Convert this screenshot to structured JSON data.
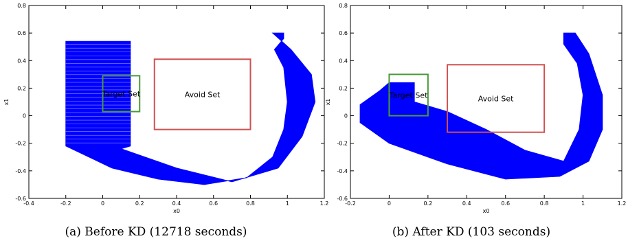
{
  "chart_data": [
    {
      "type": "area",
      "caption": "(a) Before KD (12718 seconds)",
      "xlabel": "x0",
      "ylabel": "x1",
      "xlim": [
        -0.4,
        1.2
      ],
      "ylim": [
        -0.6,
        0.8
      ],
      "xticks": [
        "-0.4",
        "-0.2",
        "0",
        "0.2",
        "0.4",
        "0.6",
        "0.8",
        "1",
        "1.2"
      ],
      "yticks": [
        "-0.6",
        "-0.4",
        "-0.2",
        "0",
        "0.2",
        "0.4",
        "0.6",
        "0.8"
      ],
      "grid": false,
      "fill_color": "#0000ff",
      "reach_outer_boundary": [
        [
          -0.2,
          0.54
        ],
        [
          0.15,
          0.54
        ],
        [
          0.15,
          -0.22
        ],
        [
          0.1,
          -0.24
        ],
        [
          0.4,
          -0.38
        ],
        [
          0.7,
          -0.48
        ],
        [
          0.95,
          -0.38
        ],
        [
          1.08,
          -0.15
        ],
        [
          1.15,
          0.1
        ],
        [
          1.13,
          0.3
        ],
        [
          1.02,
          0.48
        ],
        [
          0.92,
          0.6
        ],
        [
          0.98,
          0.6
        ],
        [
          0.98,
          0.56
        ],
        [
          0.93,
          0.48
        ],
        [
          0.98,
          0.35
        ],
        [
          1.0,
          0.1
        ],
        [
          0.98,
          -0.1
        ],
        [
          0.92,
          -0.3
        ],
        [
          0.78,
          -0.45
        ],
        [
          0.55,
          -0.5
        ],
        [
          0.3,
          -0.46
        ],
        [
          0.05,
          -0.38
        ],
        [
          -0.2,
          -0.22
        ]
      ],
      "stripe_color": "#ccccff",
      "regions": [
        {
          "label": "Target Set",
          "x": [
            0.0,
            0.2
          ],
          "y": [
            0.03,
            0.29
          ],
          "color": "#4a9a3a"
        },
        {
          "label": "Avoid Set",
          "x": [
            0.28,
            0.8
          ],
          "y": [
            -0.1,
            0.41
          ],
          "color": "#d05050"
        }
      ]
    },
    {
      "type": "area",
      "caption": "(b) After KD (103 seconds)",
      "xlabel": "x0",
      "ylabel": "x1",
      "xlim": [
        -0.2,
        1.2
      ],
      "ylim": [
        -0.6,
        0.8
      ],
      "xticks": [
        "-0.2",
        "0",
        "0.2",
        "0.4",
        "0.6",
        "0.8",
        "1",
        "1.2"
      ],
      "yticks": [
        "-0.6",
        "-0.4",
        "-0.2",
        "0",
        "0.2",
        "0.4",
        "0.6",
        "0.8"
      ],
      "grid": false,
      "fill_color": "#0000ff",
      "reach_outer_boundary": [
        [
          0.0,
          0.24
        ],
        [
          0.13,
          0.24
        ],
        [
          0.13,
          0.1
        ],
        [
          0.3,
          0.03
        ],
        [
          0.5,
          -0.1
        ],
        [
          0.7,
          -0.25
        ],
        [
          0.9,
          -0.33
        ],
        [
          0.98,
          -0.1
        ],
        [
          1.0,
          0.15
        ],
        [
          0.97,
          0.38
        ],
        [
          0.9,
          0.52
        ],
        [
          0.9,
          0.6
        ],
        [
          0.96,
          0.6
        ],
        [
          1.03,
          0.45
        ],
        [
          1.1,
          0.15
        ],
        [
          1.1,
          -0.1
        ],
        [
          1.03,
          -0.33
        ],
        [
          0.88,
          -0.44
        ],
        [
          0.6,
          -0.46
        ],
        [
          0.3,
          -0.35
        ],
        [
          0.0,
          -0.2
        ],
        [
          -0.15,
          -0.05
        ],
        [
          -0.15,
          0.08
        ],
        [
          -0.05,
          0.18
        ]
      ],
      "stripe_color": "#ccccff",
      "regions": [
        {
          "label": "Target Set",
          "x": [
            0.0,
            0.2
          ],
          "y": [
            0.0,
            0.3
          ],
          "color": "#4a9a3a"
        },
        {
          "label": "Avoid Set",
          "x": [
            0.3,
            0.8
          ],
          "y": [
            -0.12,
            0.37
          ],
          "color": "#d05050"
        }
      ]
    }
  ]
}
